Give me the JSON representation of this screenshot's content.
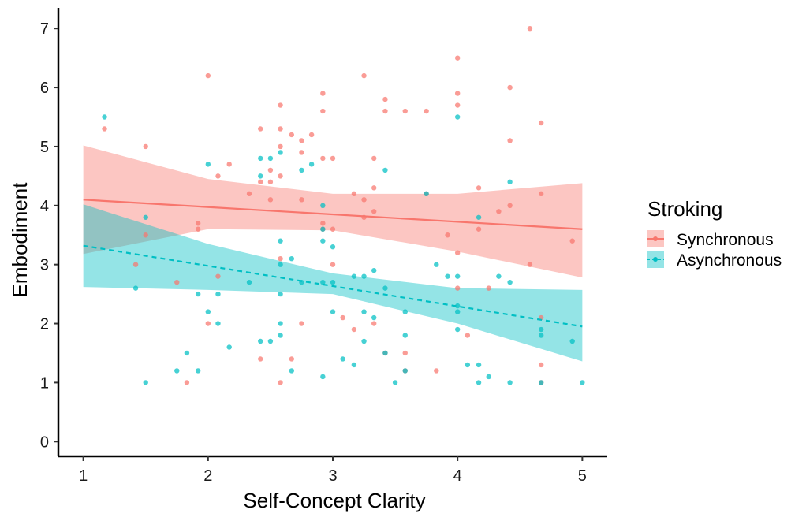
{
  "chart_data": {
    "type": "scatter",
    "xlabel": "Self-Concept Clarity",
    "ylabel": "Embodiment",
    "xlim": [
      0.8,
      5.2
    ],
    "ylim": [
      -0.25,
      7.35
    ],
    "x_ticks": [
      "1",
      "2",
      "3",
      "4",
      "5"
    ],
    "y_ticks": [
      "0",
      "1",
      "2",
      "3",
      "4",
      "5",
      "6",
      "7"
    ],
    "grid": false,
    "legend": {
      "title": "Stroking",
      "placement": "right"
    },
    "series": [
      {
        "name": "Synchronous",
        "color": "#F8766D",
        "band_color": "#F8766D",
        "line_style": "solid",
        "fit_line": [
          [
            1,
            4.1
          ],
          [
            5,
            3.6
          ]
        ],
        "ci_band": {
          "x": [
            1,
            2,
            3,
            4,
            5
          ],
          "upper": [
            5.02,
            4.45,
            4.2,
            4.2,
            4.38
          ],
          "lower": [
            3.18,
            3.6,
            3.58,
            3.22,
            2.78
          ]
        },
        "points": [
          [
            1.17,
            5.3
          ],
          [
            1.5,
            5.0
          ],
          [
            2.0,
            6.2
          ],
          [
            2.08,
            4.5
          ],
          [
            2.17,
            4.7
          ],
          [
            1.92,
            3.7
          ],
          [
            1.92,
            3.6
          ],
          [
            2.0,
            2.0
          ],
          [
            2.08,
            2.8
          ],
          [
            2.33,
            4.2
          ],
          [
            2.42,
            5.3
          ],
          [
            2.42,
            4.4
          ],
          [
            2.5,
            4.6
          ],
          [
            2.5,
            4.4
          ],
          [
            2.5,
            4.1
          ],
          [
            2.58,
            5.7
          ],
          [
            2.58,
            5.3
          ],
          [
            2.58,
            5.0
          ],
          [
            2.58,
            4.5
          ],
          [
            2.67,
            5.2
          ],
          [
            2.75,
            5.1
          ],
          [
            2.75,
            4.9
          ],
          [
            2.75,
            4.1
          ],
          [
            2.83,
            5.2
          ],
          [
            2.92,
            5.9
          ],
          [
            2.92,
            5.6
          ],
          [
            2.92,
            4.8
          ],
          [
            3.0,
            4.8
          ],
          [
            2.92,
            3.7
          ],
          [
            2.92,
            3.6
          ],
          [
            3.0,
            3.6
          ],
          [
            3.17,
            4.2
          ],
          [
            3.25,
            6.2
          ],
          [
            3.25,
            4.1
          ],
          [
            3.25,
            3.8
          ],
          [
            3.33,
            4.8
          ],
          [
            3.33,
            4.3
          ],
          [
            3.33,
            3.9
          ],
          [
            3.42,
            5.8
          ],
          [
            3.42,
            5.6
          ],
          [
            3.58,
            5.6
          ],
          [
            3.75,
            5.6
          ],
          [
            3.75,
            4.2
          ],
          [
            3.92,
            3.5
          ],
          [
            4.0,
            6.5
          ],
          [
            4.0,
            5.9
          ],
          [
            4.0,
            5.7
          ],
          [
            4.0,
            3.2
          ],
          [
            4.17,
            4.3
          ],
          [
            4.17,
            3.6
          ],
          [
            4.33,
            3.9
          ],
          [
            4.42,
            6.0
          ],
          [
            4.42,
            5.1
          ],
          [
            4.42,
            4.0
          ],
          [
            4.58,
            7.0
          ],
          [
            4.67,
            5.4
          ],
          [
            4.67,
            4.2
          ],
          [
            4.92,
            3.4
          ],
          [
            1.42,
            3.0
          ],
          [
            1.5,
            3.5
          ],
          [
            1.75,
            2.7
          ],
          [
            1.83,
            1.0
          ],
          [
            2.42,
            1.4
          ],
          [
            2.58,
            3.1
          ],
          [
            2.58,
            1.0
          ],
          [
            2.67,
            1.4
          ],
          [
            2.75,
            2.0
          ],
          [
            3.0,
            3.0
          ],
          [
            3.08,
            2.1
          ],
          [
            3.17,
            1.9
          ],
          [
            3.33,
            2.0
          ],
          [
            3.42,
            1.5
          ],
          [
            3.58,
            1.5
          ],
          [
            3.58,
            1.2
          ],
          [
            3.83,
            1.2
          ],
          [
            4.0,
            2.6
          ],
          [
            4.08,
            1.8
          ],
          [
            4.25,
            2.6
          ],
          [
            4.58,
            3.0
          ],
          [
            4.67,
            2.1
          ],
          [
            4.67,
            1.3
          ],
          [
            4.67,
            1.0
          ]
        ]
      },
      {
        "name": "Asynchronous",
        "color": "#00BFC4",
        "band_color": "#00BFC4",
        "line_style": "dashed",
        "fit_line": [
          [
            1,
            3.32
          ],
          [
            5,
            1.95
          ]
        ],
        "ci_band": {
          "x": [
            1,
            2,
            3,
            4,
            5
          ],
          "upper": [
            4.02,
            3.35,
            2.85,
            2.6,
            2.57
          ],
          "lower": [
            2.62,
            2.57,
            2.5,
            2.0,
            1.36
          ]
        },
        "points": [
          [
            1.17,
            5.5
          ],
          [
            1.42,
            2.6
          ],
          [
            1.5,
            3.8
          ],
          [
            1.5,
            1.0
          ],
          [
            1.75,
            1.2
          ],
          [
            1.83,
            1.5
          ],
          [
            1.92,
            2.5
          ],
          [
            1.92,
            1.2
          ],
          [
            2.0,
            4.7
          ],
          [
            2.0,
            2.2
          ],
          [
            2.08,
            2.5
          ],
          [
            2.08,
            2.0
          ],
          [
            2.17,
            1.6
          ],
          [
            2.33,
            2.7
          ],
          [
            2.42,
            4.8
          ],
          [
            2.42,
            4.5
          ],
          [
            2.42,
            1.7
          ],
          [
            2.5,
            4.8
          ],
          [
            2.5,
            1.7
          ],
          [
            2.58,
            4.9
          ],
          [
            2.58,
            3.4
          ],
          [
            2.58,
            3.0
          ],
          [
            2.58,
            2.5
          ],
          [
            2.58,
            2.0
          ],
          [
            2.58,
            1.8
          ],
          [
            2.67,
            3.1
          ],
          [
            2.67,
            1.2
          ],
          [
            2.75,
            4.6
          ],
          [
            2.75,
            2.7
          ],
          [
            2.83,
            4.7
          ],
          [
            2.92,
            4.0
          ],
          [
            2.92,
            3.6
          ],
          [
            2.92,
            3.4
          ],
          [
            2.92,
            2.7
          ],
          [
            2.92,
            1.1
          ],
          [
            3.0,
            3.3
          ],
          [
            3.0,
            2.7
          ],
          [
            3.0,
            2.2
          ],
          [
            3.08,
            1.4
          ],
          [
            3.17,
            2.8
          ],
          [
            3.17,
            1.3
          ],
          [
            3.25,
            2.8
          ],
          [
            3.25,
            2.2
          ],
          [
            3.25,
            1.7
          ],
          [
            3.33,
            2.9
          ],
          [
            3.33,
            2.1
          ],
          [
            3.42,
            4.6
          ],
          [
            3.42,
            2.6
          ],
          [
            3.42,
            1.5
          ],
          [
            3.5,
            1.0
          ],
          [
            3.58,
            2.2
          ],
          [
            3.58,
            1.8
          ],
          [
            3.58,
            1.2
          ],
          [
            3.75,
            4.2
          ],
          [
            3.83,
            3.0
          ],
          [
            3.92,
            2.8
          ],
          [
            4.0,
            5.5
          ],
          [
            4.0,
            2.8
          ],
          [
            4.0,
            2.3
          ],
          [
            4.0,
            2.2
          ],
          [
            4.0,
            1.9
          ],
          [
            4.08,
            1.3
          ],
          [
            4.17,
            3.8
          ],
          [
            4.17,
            1.3
          ],
          [
            4.17,
            1.0
          ],
          [
            4.25,
            1.1
          ],
          [
            4.33,
            2.8
          ],
          [
            4.42,
            4.4
          ],
          [
            4.42,
            2.7
          ],
          [
            4.42,
            1.0
          ],
          [
            4.67,
            1.9
          ],
          [
            4.67,
            1.8
          ],
          [
            4.67,
            1.0
          ],
          [
            4.92,
            1.7
          ],
          [
            5.0,
            1.0
          ]
        ]
      }
    ]
  }
}
